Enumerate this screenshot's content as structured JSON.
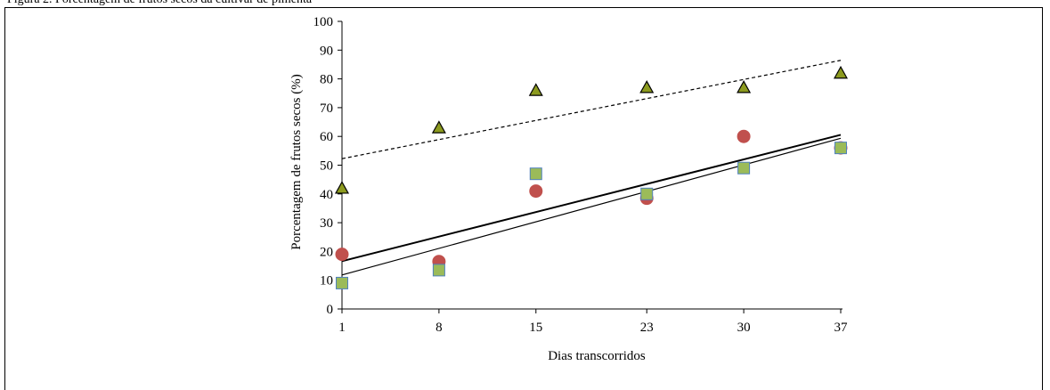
{
  "page": {
    "top_text": "Figura 2. Porcentagem de frutos secos da cultivar de pimenta"
  },
  "chart_data": {
    "type": "scatter",
    "title": "",
    "xlabel": "Dias transcorridos",
    "ylabel": "Porcentagem de frutos secos  (%)",
    "x_ticks": [
      "1",
      "8",
      "15",
      "23",
      "30",
      "37"
    ],
    "x_tick_values": [
      1,
      8,
      15,
      23,
      30,
      37
    ],
    "xlim": [
      1,
      37
    ],
    "y_ticks": [
      0,
      10,
      20,
      30,
      40,
      50,
      60,
      70,
      80,
      90,
      100
    ],
    "ylim": [
      0,
      100
    ],
    "grid": false,
    "series": [
      {
        "marker": "triangle",
        "color": "#8c9a1f",
        "edge_color": "#000000",
        "x": [
          1,
          8,
          15,
          23,
          30,
          37
        ],
        "y": [
          42,
          63,
          76,
          77,
          77,
          82
        ],
        "trend": {
          "style": "dashed",
          "color": "#000000",
          "slope": 0.95,
          "intercept": 51.3
        }
      },
      {
        "marker": "circle",
        "color": "#c0504d",
        "edge_color": "#c0504d",
        "x": [
          1,
          8,
          15,
          23,
          30,
          37
        ],
        "y": [
          19,
          16.5,
          41,
          38.5,
          60,
          56
        ],
        "trend": {
          "style": "solid-thick",
          "color": "#000000",
          "slope": 1.22,
          "intercept": 15.4
        }
      },
      {
        "marker": "square",
        "color": "#9bbb59",
        "edge_color": "#4f81bd",
        "x": [
          1,
          8,
          15,
          23,
          30,
          37
        ],
        "y": [
          9,
          13.5,
          47,
          40,
          49,
          56
        ],
        "trend": {
          "style": "solid",
          "color": "#000000",
          "slope": 1.32,
          "intercept": 10.5
        }
      }
    ]
  }
}
